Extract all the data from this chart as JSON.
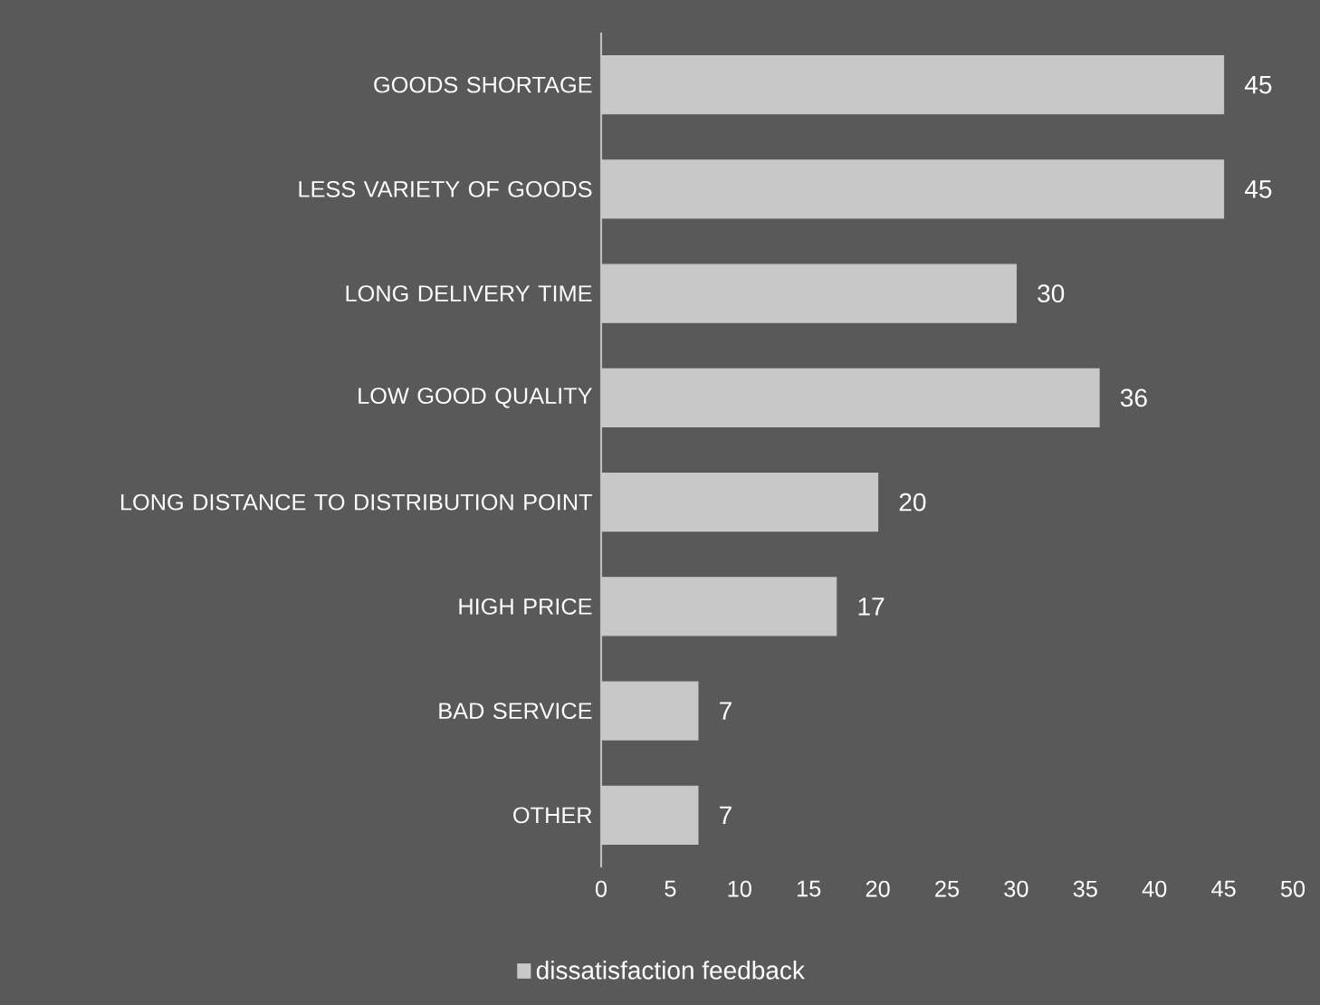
{
  "chart_data": {
    "type": "bar",
    "orientation": "horizontal",
    "categories": [
      "GOODS SHORTAGE",
      "LESS VARIETY OF GOODS",
      "LONG DELIVERY TIME",
      "LOW GOOD QUALITY",
      "LONG DISTANCE TO DISTRIBUTION POINT",
      "HIGH PRICE",
      "BAD SERVICE",
      "OTHER"
    ],
    "series": [
      {
        "name": "dissatisfaction feedback",
        "color": "#c8c8c8",
        "values": [
          45,
          45,
          30,
          36,
          20,
          17,
          7,
          7
        ]
      }
    ],
    "xlim": [
      0,
      50
    ],
    "xticks": [
      0,
      5,
      10,
      15,
      20,
      25,
      30,
      35,
      40,
      45,
      50
    ],
    "data_labels": true,
    "legend": "bottom",
    "grid": false
  }
}
